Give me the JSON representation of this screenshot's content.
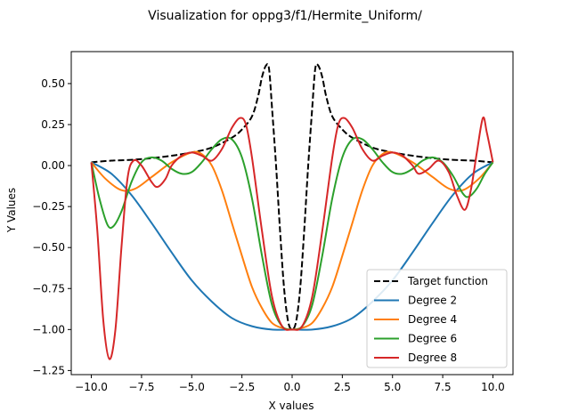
{
  "chart_data": {
    "type": "line",
    "title": "Visualization for oppg3/f1/Hermite_Uniform/",
    "xlabel": "X values",
    "ylabel": "Y Values",
    "xlim": [
      -11.0,
      11.0
    ],
    "ylim": [
      -1.275,
      0.695
    ],
    "xticks": [
      -10.0,
      -7.5,
      -5.0,
      -2.5,
      0.0,
      2.5,
      5.0,
      7.5,
      10.0
    ],
    "xtick_labels": [
      "−10.0",
      "−7.5",
      "−5.0",
      "−2.5",
      "0.0",
      "2.5",
      "5.0",
      "7.5",
      "10.0"
    ],
    "yticks": [
      -1.25,
      -1.0,
      -0.75,
      -0.5,
      -0.25,
      0.0,
      0.25,
      0.5
    ],
    "ytick_labels": [
      "−1.25",
      "−1.00",
      "−0.75",
      "−0.50",
      "−0.25",
      "0.00",
      "0.25",
      "0.50"
    ],
    "grid": false,
    "legend_position": "lower-right",
    "series": [
      {
        "name": "Target function",
        "color": "#000000",
        "dash": true,
        "points": [
          [
            -10,
            0.02
          ],
          [
            -9,
            0.03
          ],
          [
            -8,
            0.035
          ],
          [
            -7,
            0.045
          ],
          [
            -6,
            0.06
          ],
          [
            -5,
            0.08
          ],
          [
            -4,
            0.11
          ],
          [
            -3,
            0.17
          ],
          [
            -2.5,
            0.22
          ],
          [
            -2,
            0.3
          ],
          [
            -1.7,
            0.42
          ],
          [
            -1.5,
            0.54
          ],
          [
            -1.3,
            0.61
          ],
          [
            -1.15,
            0.59
          ],
          [
            -1.0,
            0.35
          ],
          [
            -0.8,
            0.0
          ],
          [
            -0.6,
            -0.4
          ],
          [
            -0.4,
            -0.75
          ],
          [
            -0.2,
            -0.95
          ],
          [
            0,
            -1.0
          ],
          [
            0.2,
            -0.95
          ],
          [
            0.4,
            -0.75
          ],
          [
            0.6,
            -0.4
          ],
          [
            0.8,
            0.0
          ],
          [
            1.0,
            0.35
          ],
          [
            1.15,
            0.59
          ],
          [
            1.3,
            0.61
          ],
          [
            1.5,
            0.54
          ],
          [
            1.7,
            0.42
          ],
          [
            2,
            0.3
          ],
          [
            2.5,
            0.22
          ],
          [
            3,
            0.17
          ],
          [
            4,
            0.11
          ],
          [
            5,
            0.08
          ],
          [
            6,
            0.06
          ],
          [
            7,
            0.045
          ],
          [
            8,
            0.035
          ],
          [
            9,
            0.03
          ],
          [
            10,
            0.02
          ]
        ]
      },
      {
        "name": "Degree 2",
        "color": "#1f77b4",
        "dash": false,
        "points": [
          [
            -10,
            0.02
          ],
          [
            -9,
            -0.05
          ],
          [
            -8,
            -0.18
          ],
          [
            -7,
            -0.35
          ],
          [
            -6,
            -0.53
          ],
          [
            -5,
            -0.7
          ],
          [
            -4,
            -0.83
          ],
          [
            -3,
            -0.93
          ],
          [
            -2,
            -0.98
          ],
          [
            -1,
            -1.0
          ],
          [
            0,
            -1.0
          ],
          [
            1,
            -1.0
          ],
          [
            2,
            -0.98
          ],
          [
            3,
            -0.93
          ],
          [
            4,
            -0.83
          ],
          [
            5,
            -0.7
          ],
          [
            6,
            -0.53
          ],
          [
            7,
            -0.35
          ],
          [
            8,
            -0.18
          ],
          [
            9,
            -0.05
          ],
          [
            10,
            0.02
          ]
        ]
      },
      {
        "name": "Degree 4",
        "color": "#ff7f0e",
        "dash": false,
        "points": [
          [
            -10,
            0.02
          ],
          [
            -9.3,
            -0.08
          ],
          [
            -8.5,
            -0.15
          ],
          [
            -7.8,
            -0.14
          ],
          [
            -7,
            -0.07
          ],
          [
            -6,
            0.02
          ],
          [
            -5,
            0.08
          ],
          [
            -4.5,
            0.07
          ],
          [
            -4,
            0.0
          ],
          [
            -3.5,
            -0.15
          ],
          [
            -3,
            -0.35
          ],
          [
            -2.5,
            -0.55
          ],
          [
            -2,
            -0.74
          ],
          [
            -1.5,
            -0.87
          ],
          [
            -1,
            -0.96
          ],
          [
            -0.5,
            -0.99
          ],
          [
            0,
            -1.0
          ],
          [
            0.5,
            -0.99
          ],
          [
            1,
            -0.96
          ],
          [
            1.5,
            -0.87
          ],
          [
            2,
            -0.74
          ],
          [
            2.5,
            -0.55
          ],
          [
            3,
            -0.35
          ],
          [
            3.5,
            -0.15
          ],
          [
            4,
            0.0
          ],
          [
            4.5,
            0.07
          ],
          [
            5,
            0.08
          ],
          [
            6,
            0.02
          ],
          [
            7,
            -0.07
          ],
          [
            7.8,
            -0.14
          ],
          [
            8.5,
            -0.15
          ],
          [
            9.3,
            -0.08
          ],
          [
            10,
            0.02
          ]
        ]
      },
      {
        "name": "Degree 6",
        "color": "#2ca02c",
        "dash": false,
        "points": [
          [
            -10,
            0.02
          ],
          [
            -9.6,
            -0.2
          ],
          [
            -9.2,
            -0.36
          ],
          [
            -8.9,
            -0.37
          ],
          [
            -8.5,
            -0.28
          ],
          [
            -8,
            -0.1
          ],
          [
            -7.5,
            0.02
          ],
          [
            -7,
            0.05
          ],
          [
            -6.5,
            0.03
          ],
          [
            -6,
            -0.02
          ],
          [
            -5.5,
            -0.05
          ],
          [
            -5,
            -0.04
          ],
          [
            -4.5,
            0.02
          ],
          [
            -4,
            0.1
          ],
          [
            -3.5,
            0.16
          ],
          [
            -3,
            0.16
          ],
          [
            -2.5,
            0.05
          ],
          [
            -2,
            -0.2
          ],
          [
            -1.5,
            -0.55
          ],
          [
            -1,
            -0.85
          ],
          [
            -0.5,
            -0.98
          ],
          [
            0,
            -1.0
          ],
          [
            0.5,
            -0.98
          ],
          [
            1,
            -0.85
          ],
          [
            1.5,
            -0.55
          ],
          [
            2,
            -0.2
          ],
          [
            2.5,
            0.05
          ],
          [
            3,
            0.16
          ],
          [
            3.5,
            0.16
          ],
          [
            4,
            0.1
          ],
          [
            4.5,
            0.02
          ],
          [
            5,
            -0.04
          ],
          [
            5.5,
            -0.05
          ],
          [
            6,
            -0.02
          ],
          [
            6.5,
            0.03
          ],
          [
            7,
            0.05
          ],
          [
            7.5,
            0.02
          ],
          [
            8,
            -0.06
          ],
          [
            8.5,
            -0.17
          ],
          [
            8.8,
            -0.19
          ],
          [
            9.2,
            -0.14
          ],
          [
            9.6,
            -0.05
          ],
          [
            10,
            0.02
          ]
        ]
      },
      {
        "name": "Degree 8",
        "color": "#d62728",
        "dash": false,
        "points": [
          [
            -10,
            0.02
          ],
          [
            -9.7,
            -0.4
          ],
          [
            -9.4,
            -0.95
          ],
          [
            -9.1,
            -1.18
          ],
          [
            -8.8,
            -1.0
          ],
          [
            -8.5,
            -0.5
          ],
          [
            -8.2,
            -0.08
          ],
          [
            -7.9,
            0.03
          ],
          [
            -7.5,
            0.0
          ],
          [
            -7.0,
            -0.1
          ],
          [
            -6.7,
            -0.13
          ],
          [
            -6.3,
            -0.08
          ],
          [
            -6.0,
            0.0
          ],
          [
            -5.5,
            0.06
          ],
          [
            -5.0,
            0.08
          ],
          [
            -4.5,
            0.06
          ],
          [
            -4.0,
            0.03
          ],
          [
            -3.5,
            0.1
          ],
          [
            -3.0,
            0.23
          ],
          [
            -2.6,
            0.29
          ],
          [
            -2.3,
            0.25
          ],
          [
            -2.0,
            0.05
          ],
          [
            -1.5,
            -0.4
          ],
          [
            -1.0,
            -0.8
          ],
          [
            -0.5,
            -0.98
          ],
          [
            0,
            -1.0
          ],
          [
            0.5,
            -0.98
          ],
          [
            1.0,
            -0.8
          ],
          [
            1.5,
            -0.4
          ],
          [
            2.0,
            0.05
          ],
          [
            2.3,
            0.25
          ],
          [
            2.6,
            0.29
          ],
          [
            3.0,
            0.23
          ],
          [
            3.5,
            0.1
          ],
          [
            4.0,
            0.03
          ],
          [
            4.5,
            0.06
          ],
          [
            5.0,
            0.08
          ],
          [
            5.5,
            0.06
          ],
          [
            6.0,
            0.0
          ],
          [
            6.3,
            -0.05
          ],
          [
            6.8,
            -0.02
          ],
          [
            7.3,
            0.03
          ],
          [
            7.8,
            -0.04
          ],
          [
            8.2,
            -0.18
          ],
          [
            8.6,
            -0.27
          ],
          [
            8.9,
            -0.15
          ],
          [
            9.2,
            0.08
          ],
          [
            9.5,
            0.29
          ],
          [
            9.7,
            0.2
          ],
          [
            10,
            0.02
          ]
        ]
      }
    ]
  }
}
